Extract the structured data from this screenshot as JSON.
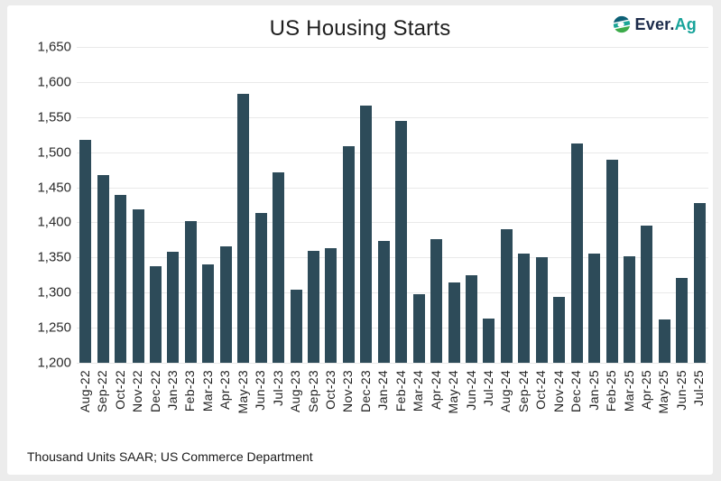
{
  "header": {
    "title": "US Housing Starts",
    "logo": {
      "part1": "Ever.",
      "part2": "Ag"
    }
  },
  "footer": {
    "source_note": "Thousand Units SAAR; US Commerce Department"
  },
  "colors": {
    "bar": "#2d4b59",
    "gridline": "#e9e9e9",
    "logo_navy": "#1c2b4a",
    "logo_teal": "#17a39a",
    "logo_icon_top": "#0d6076",
    "logo_icon_mid": "#1aa596",
    "logo_icon_bottom": "#3cab4a"
  },
  "chart_data": {
    "type": "bar",
    "title": "US Housing Starts",
    "xlabel": "",
    "ylabel": "Thousand Units SAAR",
    "ylim": [
      1200,
      1650
    ],
    "ytick_step": 50,
    "y_tick_labels": [
      "1,650",
      "1,600",
      "1,550",
      "1,500",
      "1,450",
      "1,400",
      "1,350",
      "1,300",
      "1,250",
      "1,200"
    ],
    "grid": true,
    "legend": false,
    "categories": [
      "Aug-22",
      "Sep-22",
      "Oct-22",
      "Nov-22",
      "Dec-22",
      "Jan-23",
      "Feb-23",
      "Mar-23",
      "Apr-23",
      "May-23",
      "Jun-23",
      "Jul-23",
      "Aug-23",
      "Sep-23",
      "Oct-23",
      "Nov-23",
      "Dec-23",
      "Jan-24",
      "Feb-24",
      "Mar-24",
      "Apr-24",
      "May-24",
      "Jun-24",
      "Jul-24",
      "Aug-24",
      "Sep-24",
      "Oct-24",
      "Nov-24",
      "Dec-24",
      "Jan-25",
      "Feb-25",
      "Mar-25",
      "Apr-25",
      "May-25",
      "Jun-25",
      "Jul-25"
    ],
    "values": [
      1518,
      1468,
      1439,
      1419,
      1338,
      1358,
      1402,
      1340,
      1366,
      1583,
      1413,
      1471,
      1304,
      1360,
      1363,
      1508,
      1567,
      1374,
      1545,
      1298,
      1376,
      1314,
      1325,
      1263,
      1390,
      1355,
      1350,
      1294,
      1513,
      1356,
      1489,
      1352,
      1396,
      1262,
      1321,
      1428
    ]
  }
}
